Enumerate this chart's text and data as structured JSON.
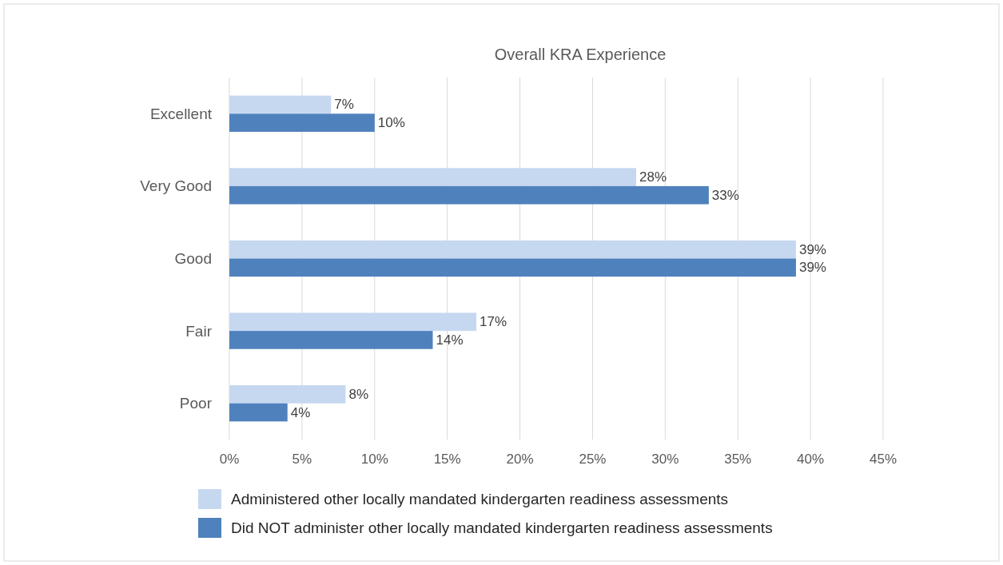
{
  "chart_data": {
    "type": "bar",
    "orientation": "horizontal",
    "title": "Overall KRA Experience",
    "categories": [
      "Excellent",
      "Very Good",
      "Good",
      "Fair",
      "Poor"
    ],
    "series": [
      {
        "name": "Administered other locally mandated kindergarten readiness assessments",
        "color": "#c6d8f0",
        "values": [
          7,
          28,
          39,
          17,
          8
        ],
        "value_labels": [
          "7%",
          "28%",
          "39%",
          "17%",
          "8%"
        ]
      },
      {
        "name": "Did NOT administer other locally mandated kindergarten readiness assessments",
        "color": "#4f81bd",
        "values": [
          10,
          33,
          39,
          14,
          4
        ],
        "value_labels": [
          "10%",
          "33%",
          "39%",
          "14%",
          "4%"
        ]
      }
    ],
    "xlim": [
      0,
      45
    ],
    "xticks": [
      {
        "value": 0,
        "label": "0%"
      },
      {
        "value": 5,
        "label": "5%"
      },
      {
        "value": 10,
        "label": "10%"
      },
      {
        "value": 15,
        "label": "15%"
      },
      {
        "value": 20,
        "label": "20%"
      },
      {
        "value": 25,
        "label": "25%"
      },
      {
        "value": 30,
        "label": "30%"
      },
      {
        "value": 35,
        "label": "35%"
      },
      {
        "value": 40,
        "label": "40%"
      },
      {
        "value": 45,
        "label": "45%"
      }
    ],
    "grid": "x",
    "legend": "bottom"
  }
}
